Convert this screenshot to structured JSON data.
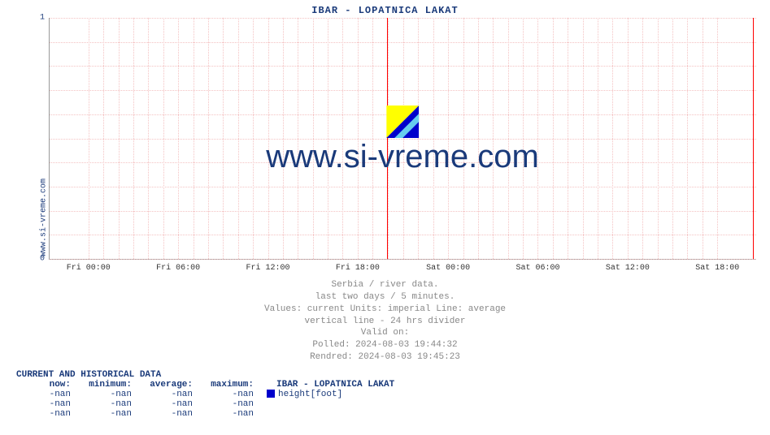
{
  "title": "IBAR -  LOPATNICA LAKAT",
  "side_link": "www.si-vreme.com",
  "watermark_text": "www.si-vreme.com",
  "chart": {
    "type": "line",
    "background_color": "#ffffff",
    "grid_color": "#f4c2c2",
    "axis_color": "#999999",
    "title_color": "#1a3a7a",
    "title_fontsize": 12,
    "ylim": [
      0,
      1
    ],
    "yticks": [
      0,
      1
    ],
    "minor_y_divisions": 10,
    "xticks": [
      "Fri 00:00",
      "Fri 06:00",
      "Fri 12:00",
      "Fri 18:00",
      "Sat 00:00",
      "Sat 06:00",
      "Sat 12:00",
      "Sat 18:00"
    ],
    "xtick_positions_pct": [
      5.5,
      18.2,
      30.9,
      43.6,
      56.4,
      69.1,
      81.8,
      94.5
    ],
    "divider_positions_pct": [
      47.8,
      99.5
    ],
    "divider_color": "#ff0000",
    "watermark_fontsize": 40,
    "watermark_color": "#1a3a7a",
    "watermark_icon_colors": [
      "#ffff00",
      "#66ccee",
      "#0000cc"
    ]
  },
  "subtitles": [
    "Serbia / river data.",
    "last two days / 5 minutes.",
    "Values: current  Units: imperial  Line: average",
    "vertical line - 24 hrs  divider",
    "Valid on:",
    "Polled: 2024-08-03 19:44:32",
    "Rendred: 2024-08-03 19:45:23"
  ],
  "table": {
    "title": "CURRENT AND HISTORICAL DATA",
    "columns": [
      "now:",
      "minimum:",
      "average:",
      "maximum:"
    ],
    "series_name": "IBAR -  LOPATNICA LAKAT",
    "series_color": "#0000cc",
    "series_unit": "height[foot]",
    "rows": [
      [
        "-nan",
        "-nan",
        "-nan",
        "-nan"
      ],
      [
        "-nan",
        "-nan",
        "-nan",
        "-nan"
      ],
      [
        "-nan",
        "-nan",
        "-nan",
        "-nan"
      ]
    ]
  }
}
